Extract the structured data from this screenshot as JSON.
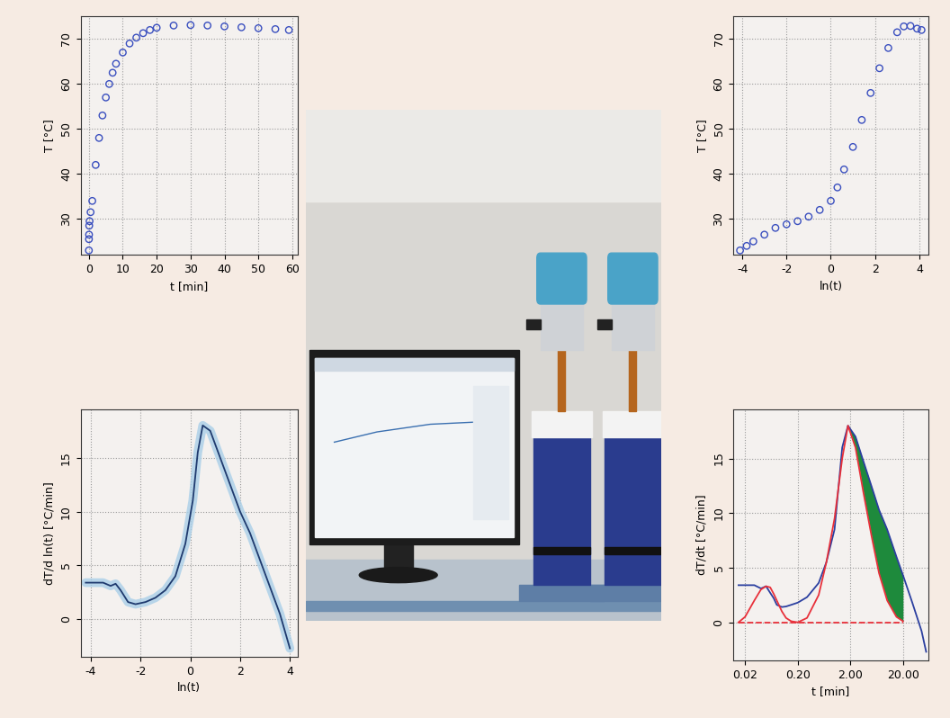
{
  "chart_data": [
    {
      "type": "scatter",
      "xlabel": "t [min]",
      "ylabel": "T [°C]",
      "x": [
        0,
        0.02,
        0.05,
        0.1,
        0.2,
        0.5,
        1,
        2,
        3,
        4,
        5,
        6,
        7,
        8,
        10,
        12,
        14,
        16,
        18,
        20,
        25,
        30,
        35,
        40,
        45,
        50,
        55,
        59
      ],
      "values": [
        23,
        25.5,
        26.5,
        28.5,
        29.5,
        31.5,
        34,
        42,
        48,
        53,
        57,
        60,
        62.5,
        64.5,
        67,
        69,
        70.3,
        71.3,
        72,
        72.5,
        73,
        73.1,
        73,
        72.8,
        72.6,
        72.4,
        72.2,
        72
      ],
      "color": "#3a4fbf",
      "marker": "o",
      "xlim": [
        -2.4,
        61.5
      ],
      "xticks": [
        0,
        10,
        20,
        30,
        40,
        50,
        60
      ],
      "ylim": [
        22,
        75
      ],
      "yticks": [
        30,
        40,
        50,
        60,
        70
      ],
      "grid": true
    },
    {
      "type": "scatter",
      "xlabel": "ln(t)",
      "ylabel": "T [°C]",
      "x": [
        -4.1,
        -3.8,
        -3.5,
        -3,
        -2.5,
        -2,
        -1.5,
        -1,
        -0.5,
        0,
        0.3,
        0.6,
        1,
        1.4,
        1.8,
        2.2,
        2.6,
        3,
        3.3,
        3.6,
        3.9,
        4.1
      ],
      "values": [
        23,
        24,
        25,
        26.5,
        28,
        28.8,
        29.5,
        30.5,
        32,
        34,
        37,
        41,
        46,
        52,
        58,
        63.5,
        68,
        71.5,
        72.8,
        72.9,
        72.3,
        72
      ],
      "color": "#3a4fbf",
      "marker": "o",
      "xlim": [
        -4.4,
        4.4
      ],
      "xticks": [
        -4,
        -2,
        0,
        2,
        4
      ],
      "ylim": [
        22,
        75
      ],
      "yticks": [
        30,
        40,
        50,
        60,
        70
      ],
      "grid": true
    },
    {
      "type": "line",
      "xlabel": "ln(t)",
      "ylabel": "dT/d ln(t) [°C/min]",
      "x": [
        -4.2,
        -3.5,
        -3.2,
        -3.0,
        -2.8,
        -2.5,
        -2.2,
        -1.8,
        -1.4,
        -1,
        -0.6,
        -0.2,
        0.1,
        0.3,
        0.5,
        0.8,
        1.2,
        1.6,
        2,
        2.4,
        2.8,
        3.2,
        3.6,
        4.0
      ],
      "values": [
        3.4,
        3.4,
        3.1,
        3.3,
        2.7,
        1.6,
        1.4,
        1.6,
        2.0,
        2.7,
        4.0,
        7,
        11,
        15.5,
        18,
        17.5,
        15,
        12.5,
        10,
        8,
        5.5,
        3,
        0.5,
        -2.7
      ],
      "color": "#1f3a6e",
      "xlim": [
        -4.4,
        4.3
      ],
      "xticks": [
        -4,
        -2,
        0,
        2,
        4
      ],
      "ylim": [
        -3.5,
        19.5
      ],
      "yticks": [
        0,
        5,
        10,
        15
      ],
      "grid": true
    },
    {
      "type": "line",
      "xlabel": "t [min]",
      "ylabel": "dT/dt [°C/min]",
      "log": "x",
      "x": [
        0.015,
        0.02,
        0.03,
        0.04,
        0.05,
        0.06,
        0.07,
        0.08,
        0.1,
        0.12,
        0.15,
        0.2,
        0.3,
        0.5,
        0.7,
        1,
        1.4,
        1.8,
        2.5,
        3.5,
        5,
        7,
        10,
        15,
        20,
        30,
        45,
        55
      ],
      "series": [
        {
          "type": "area",
          "color": "#1e8a3c",
          "values": [
            null,
            null,
            null,
            null,
            null,
            null,
            null,
            null,
            null,
            null,
            null,
            null,
            null,
            null,
            null,
            null,
            null,
            18,
            17,
            14.8,
            12.5,
            10.3,
            8.5,
            6,
            4.3,
            null,
            null,
            null
          ],
          "base": [
            null,
            null,
            null,
            null,
            null,
            null,
            null,
            null,
            null,
            null,
            null,
            null,
            null,
            null,
            null,
            null,
            null,
            18,
            16,
            12,
            8,
            4.5,
            2,
            0.5,
            0.1,
            null,
            null,
            null
          ]
        },
        {
          "type": "line",
          "color": "#2b3fa0",
          "values": [
            3.4,
            3.4,
            3.4,
            3.1,
            3.3,
            2.7,
            2.2,
            1.6,
            1.4,
            1.45,
            1.6,
            1.8,
            2.3,
            3.6,
            5.5,
            8.5,
            16,
            18,
            17,
            14.8,
            12.5,
            10.3,
            8.5,
            6,
            4.3,
            1.8,
            -0.8,
            -2.7
          ]
        },
        {
          "type": "line",
          "color": "#e8303a",
          "values": [
            0,
            0.5,
            2.0,
            3.0,
            3.3,
            3.2,
            2.6,
            2.0,
            1.0,
            0.4,
            0.1,
            0,
            0.4,
            2.5,
            5.5,
            9.5,
            15,
            18,
            16,
            12,
            8,
            4.5,
            2,
            0.5,
            0.1,
            null,
            null,
            null
          ]
        },
        {
          "type": "line",
          "color": "#e8303a",
          "line_style": "dashed",
          "values": [
            0,
            0,
            0,
            0,
            0,
            0,
            0,
            0,
            0,
            0,
            0,
            0,
            0,
            0,
            0,
            0,
            0,
            0,
            0,
            0,
            0,
            0,
            0,
            0,
            0,
            null,
            null,
            null
          ]
        }
      ],
      "xlim": [
        0.012,
        60
      ],
      "xticks": [
        {
          "value": 0.02,
          "label": "0.02"
        },
        {
          "value": 0.2,
          "label": "0.20"
        },
        {
          "value": 2,
          "label": "2.00"
        },
        {
          "value": 20,
          "label": "20.00"
        }
      ],
      "ylim": [
        -3.5,
        19.5
      ],
      "yticks": [
        0,
        5,
        10,
        15
      ],
      "grid": true
    }
  ]
}
